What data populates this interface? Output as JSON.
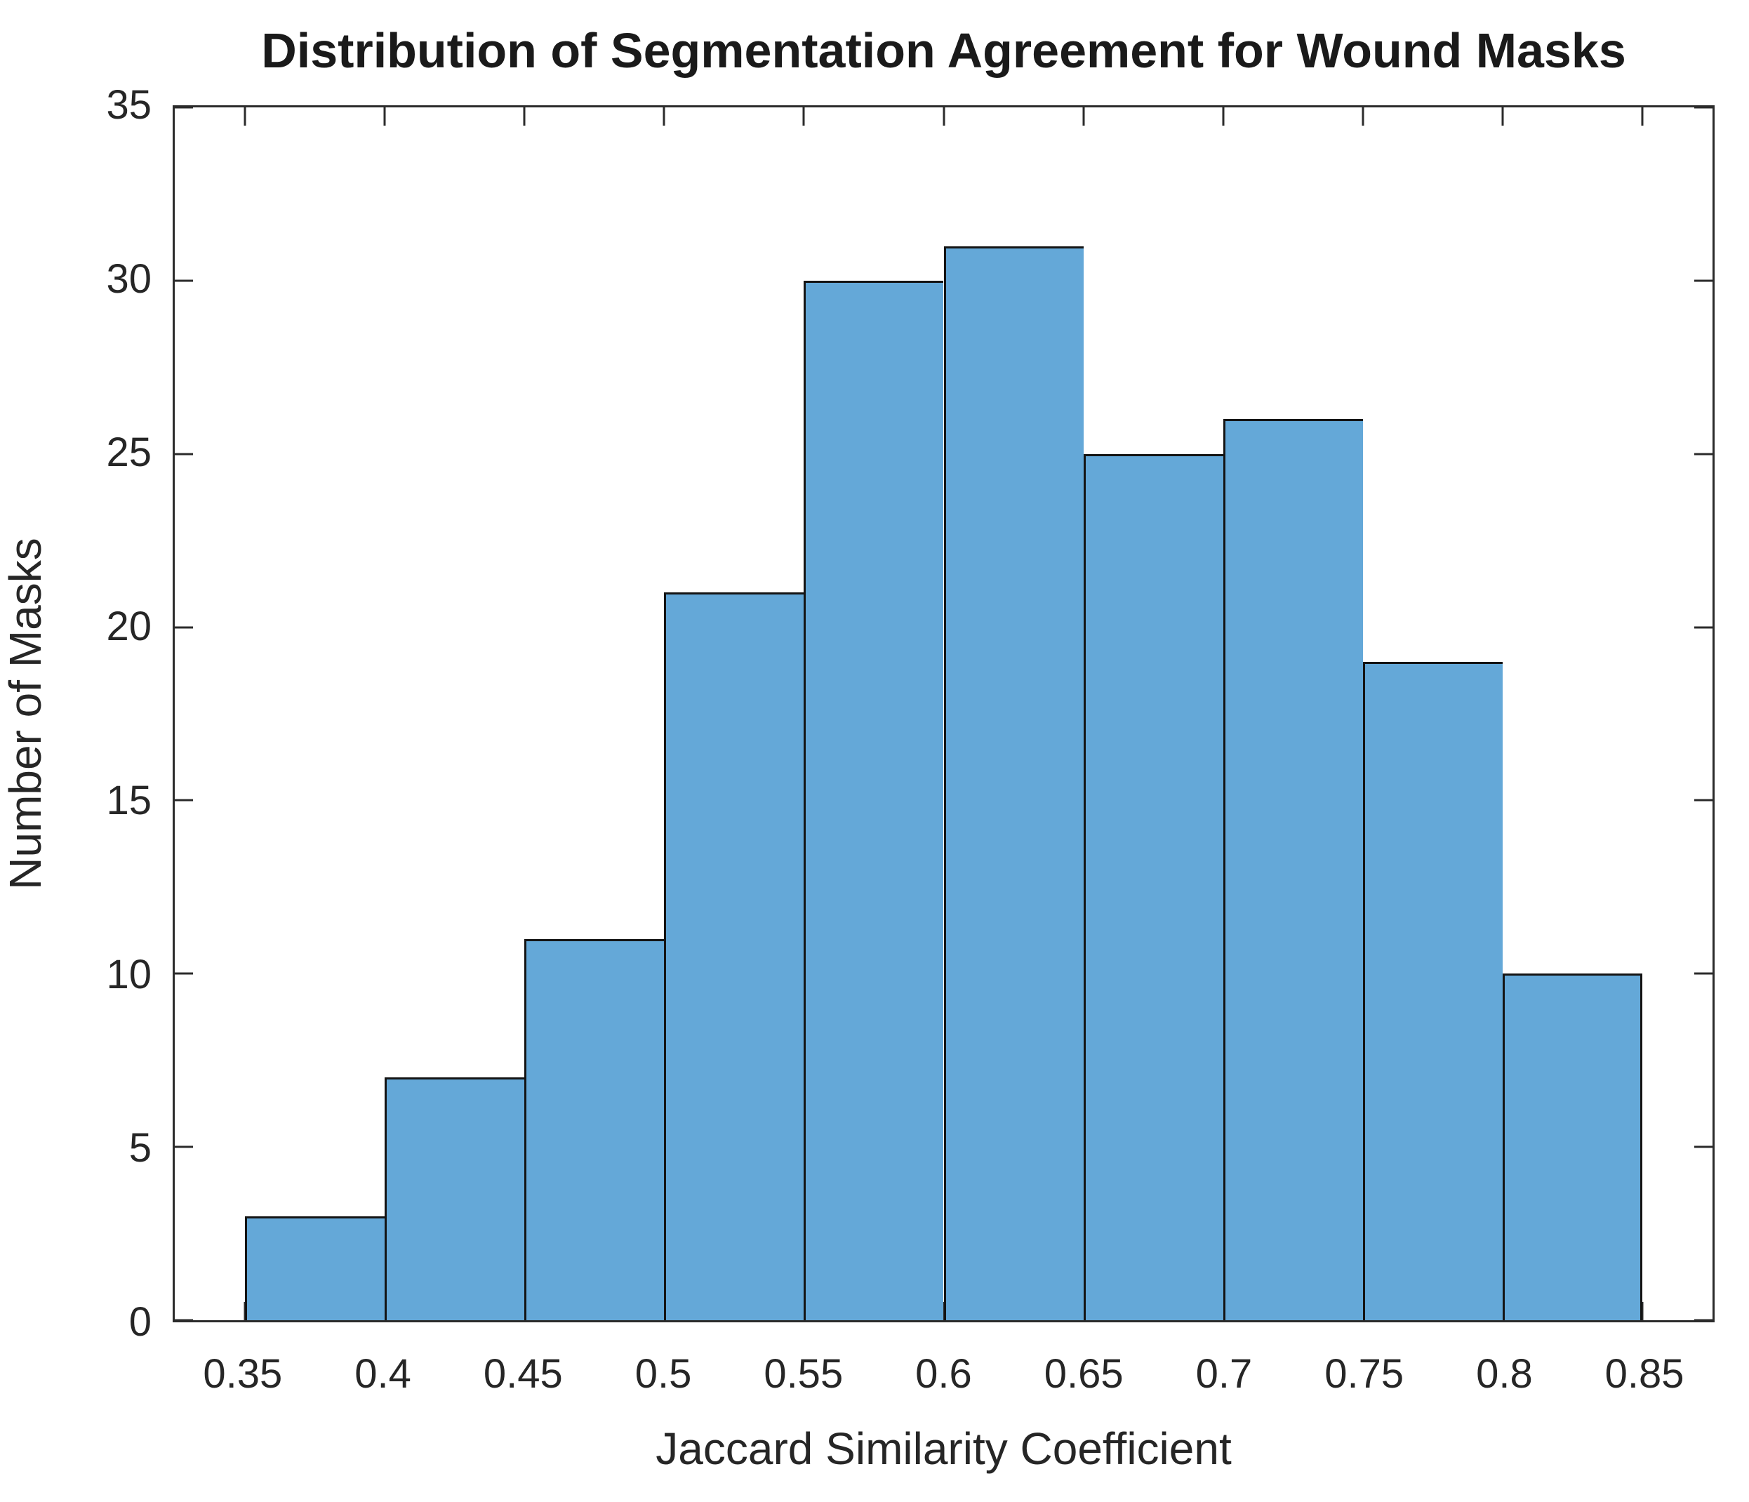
{
  "chart": {
    "title": "Distribution of Segmentation Agreement for Wound Masks",
    "xlabel": "Jaccard Similarity Coefficient",
    "ylabel": "Number of Masks"
  },
  "chart_data": {
    "type": "bar",
    "subtype": "histogram",
    "title": "Distribution of Segmentation Agreement for Wound Masks",
    "xlabel": "Jaccard Similarity Coefficient",
    "ylabel": "Number of Masks",
    "bin_edges": [
      0.35,
      0.4,
      0.45,
      0.5,
      0.55,
      0.6,
      0.65,
      0.7,
      0.75,
      0.8,
      0.85
    ],
    "counts": [
      3,
      7,
      11,
      21,
      30,
      31,
      25,
      26,
      19,
      10
    ],
    "xlim": [
      0.325,
      0.875
    ],
    "ylim": [
      0,
      35
    ],
    "xticks": {
      "values": [
        0.35,
        0.4,
        0.45,
        0.5,
        0.55,
        0.6,
        0.65,
        0.7,
        0.75,
        0.8,
        0.85
      ],
      "labels": [
        "0.35",
        "0.4",
        "0.45",
        "0.5",
        "0.55",
        "0.6",
        "0.65",
        "0.7",
        "0.75",
        "0.8",
        "0.85"
      ]
    },
    "yticks": {
      "values": [
        0,
        5,
        10,
        15,
        20,
        25,
        30,
        35
      ],
      "labels": [
        "0",
        "5",
        "10",
        "15",
        "20",
        "25",
        "30",
        "35"
      ]
    },
    "grid": false,
    "legend": "none",
    "colors": {
      "bar_fill": "#64a8d8",
      "bar_edge": "#141414",
      "axis": "#2b2b2b",
      "text": "#262626"
    }
  }
}
